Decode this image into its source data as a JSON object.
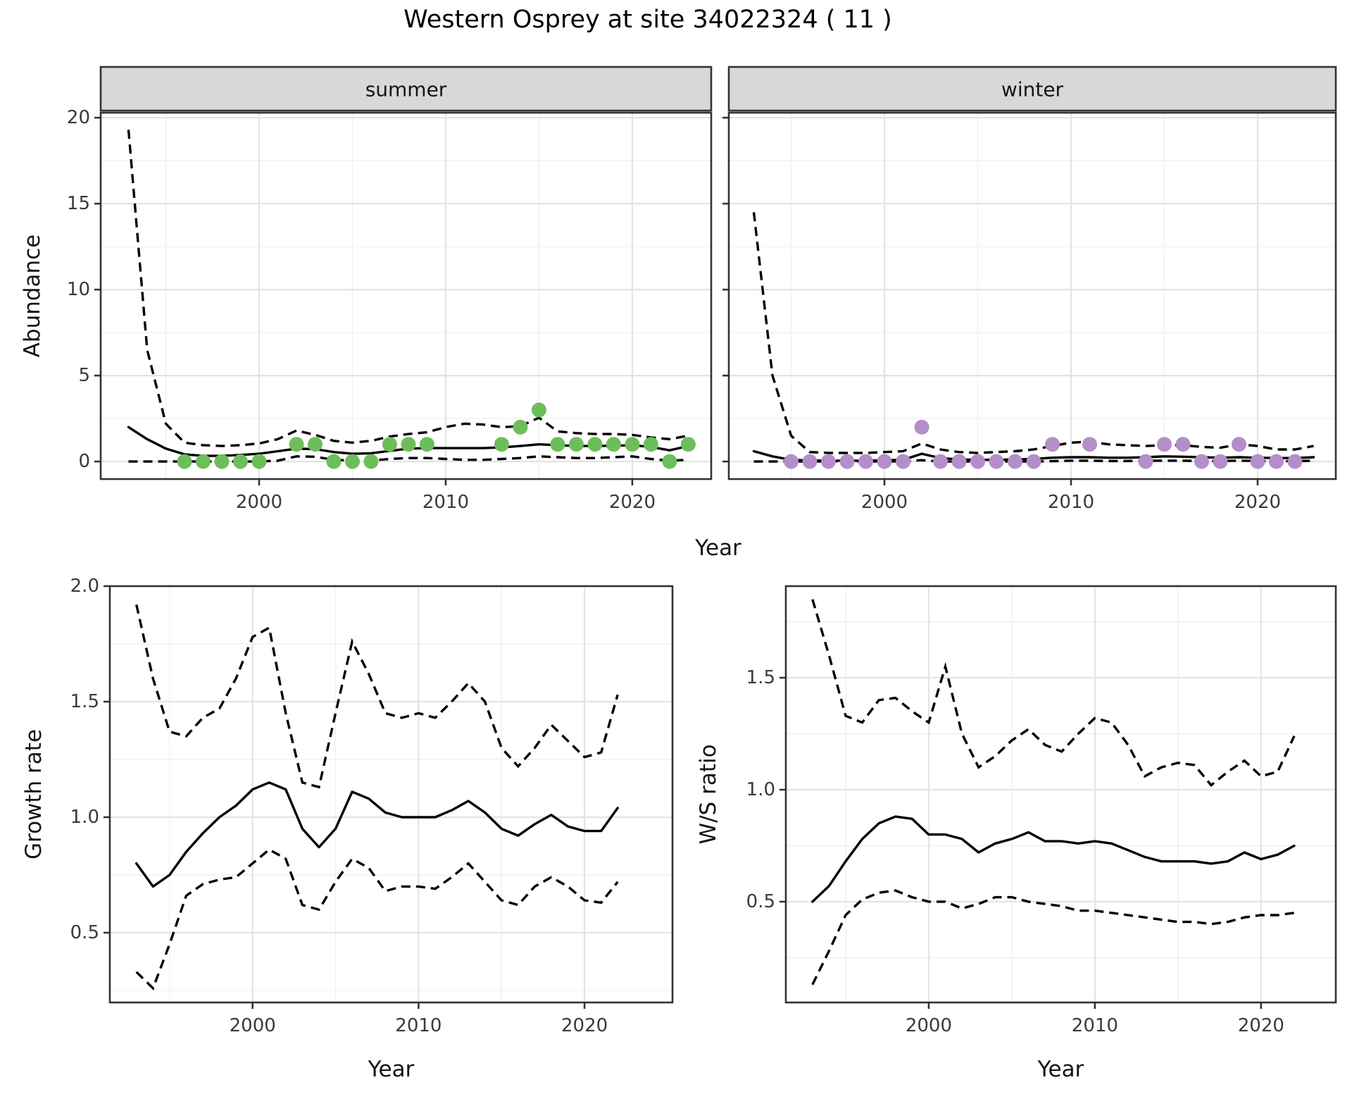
{
  "title": "Western Osprey at site 34022324 ( 11 )",
  "axis_labels": {
    "abundance": "Abundance",
    "year_top": "Year",
    "growth_rate": "Growth rate",
    "year_bottom_left": "Year",
    "ws_ratio": "W/S ratio",
    "year_bottom_right": "Year"
  },
  "facet_strips": [
    "summer",
    "winter"
  ],
  "colors": {
    "summer_point": "#6cbe5b",
    "winter_point": "#b48ec9",
    "line": "#000000",
    "grid_major": "#e3e3e3",
    "grid_minor": "#f0f0f0",
    "panel_border": "#333333",
    "strip_bg": "#d8d8d8",
    "tick_text": "#3a3a3a",
    "axis_title_text": "#151515",
    "panel_bg": "#ffffff"
  },
  "chart_data": [
    {
      "id": "abundance_summer",
      "type": "line",
      "facet_label": "summer",
      "xlabel": "Year",
      "ylabel": "Abundance",
      "xlim": [
        1991.51,
        2024.23
      ],
      "ylim": [
        -1.02,
        20.29
      ],
      "x_ticks": [
        2000,
        2010,
        2020
      ],
      "x_tick_labels": [
        "2000",
        "2010",
        "2020"
      ],
      "x_minor": [
        1995,
        2005,
        2015
      ],
      "y_ticks": [
        0,
        5,
        10,
        15,
        20
      ],
      "y_tick_labels": [
        "0",
        "5",
        "10",
        "15",
        "20"
      ],
      "y_minor": [
        2.5,
        7.5,
        12.5,
        17.5
      ],
      "show_y_tick_labels": true,
      "years": [
        1993,
        1994,
        1995,
        1996,
        1997,
        1998,
        1999,
        2000,
        2001,
        2002,
        2003,
        2004,
        2005,
        2006,
        2007,
        2008,
        2009,
        2010,
        2011,
        2012,
        2013,
        2014,
        2015,
        2016,
        2017,
        2018,
        2019,
        2020,
        2021,
        2022,
        2023
      ],
      "series": [
        {
          "name": "mean",
          "style": "solid",
          "values": [
            2.0,
            1.3,
            0.75,
            0.42,
            0.33,
            0.33,
            0.38,
            0.45,
            0.6,
            0.75,
            0.72,
            0.55,
            0.45,
            0.48,
            0.62,
            0.75,
            0.78,
            0.78,
            0.78,
            0.78,
            0.82,
            0.9,
            1.0,
            0.95,
            0.9,
            0.9,
            0.92,
            0.95,
            0.85,
            0.65,
            0.9
          ]
        },
        {
          "name": "upper_ci",
          "style": "dashed",
          "values": [
            19.3,
            6.5,
            2.2,
            1.1,
            0.95,
            0.9,
            0.95,
            1.05,
            1.3,
            1.8,
            1.55,
            1.2,
            1.1,
            1.2,
            1.45,
            1.6,
            1.7,
            2.0,
            2.2,
            2.15,
            2.0,
            2.05,
            2.55,
            1.75,
            1.65,
            1.6,
            1.6,
            1.55,
            1.4,
            1.3,
            1.5
          ]
        },
        {
          "name": "lower_ci",
          "style": "dashed",
          "values": [
            0,
            0,
            0,
            0,
            0,
            0,
            0,
            0,
            0.05,
            0.3,
            0.28,
            0.1,
            0.05,
            0.05,
            0.15,
            0.2,
            0.2,
            0.15,
            0.1,
            0.1,
            0.15,
            0.2,
            0.3,
            0.25,
            0.2,
            0.2,
            0.25,
            0.3,
            0.15,
            0.05,
            0.1
          ]
        }
      ],
      "observations": [
        [
          1996,
          0
        ],
        [
          1997,
          0
        ],
        [
          1998,
          0
        ],
        [
          1999,
          0
        ],
        [
          2000,
          0
        ],
        [
          2002,
          1
        ],
        [
          2003,
          1
        ],
        [
          2004,
          0
        ],
        [
          2005,
          0
        ],
        [
          2006,
          0
        ],
        [
          2007,
          1
        ],
        [
          2008,
          1
        ],
        [
          2009,
          1
        ],
        [
          2013,
          1
        ],
        [
          2014,
          2
        ],
        [
          2015,
          3
        ],
        [
          2016,
          1
        ],
        [
          2017,
          1
        ],
        [
          2018,
          1
        ],
        [
          2019,
          1
        ],
        [
          2020,
          1
        ],
        [
          2021,
          1
        ],
        [
          2022,
          0
        ],
        [
          2023,
          1
        ]
      ],
      "point_color_key": "summer_point"
    },
    {
      "id": "abundance_winter",
      "type": "line",
      "facet_label": "winter",
      "xlabel": "Year",
      "ylabel": "Abundance",
      "xlim": [
        1991.66,
        2024.19
      ],
      "ylim": [
        -1.02,
        20.29
      ],
      "x_ticks": [
        2000,
        2010,
        2020
      ],
      "x_tick_labels": [
        "2000",
        "2010",
        "2020"
      ],
      "x_minor": [
        1995,
        2005,
        2015
      ],
      "y_ticks": [
        0,
        5,
        10,
        15,
        20
      ],
      "y_tick_labels": [
        "0",
        "5",
        "10",
        "15",
        "20"
      ],
      "y_minor": [
        2.5,
        7.5,
        12.5,
        17.5
      ],
      "show_y_tick_labels": false,
      "years": [
        1993,
        1994,
        1995,
        1996,
        1997,
        1998,
        1999,
        2000,
        2001,
        2002,
        2003,
        2004,
        2005,
        2006,
        2007,
        2008,
        2009,
        2010,
        2011,
        2012,
        2013,
        2014,
        2015,
        2016,
        2017,
        2018,
        2019,
        2020,
        2021,
        2022,
        2023
      ],
      "series": [
        {
          "name": "mean",
          "style": "solid",
          "values": [
            0.6,
            0.3,
            0.1,
            0.06,
            0.05,
            0.05,
            0.05,
            0.07,
            0.1,
            0.45,
            0.2,
            0.12,
            0.1,
            0.1,
            0.12,
            0.15,
            0.22,
            0.25,
            0.25,
            0.22,
            0.22,
            0.25,
            0.3,
            0.28,
            0.25,
            0.22,
            0.25,
            0.22,
            0.2,
            0.2,
            0.25
          ]
        },
        {
          "name": "upper_ci",
          "style": "dashed",
          "values": [
            14.5,
            5.0,
            1.5,
            0.55,
            0.5,
            0.5,
            0.5,
            0.55,
            0.6,
            1.05,
            0.7,
            0.55,
            0.5,
            0.55,
            0.6,
            0.7,
            0.9,
            1.1,
            1.15,
            1.0,
            0.95,
            0.9,
            0.95,
            0.95,
            0.85,
            0.8,
            1.0,
            0.9,
            0.7,
            0.7,
            0.9
          ]
        },
        {
          "name": "lower_ci",
          "style": "dashed",
          "values": [
            0,
            0,
            0,
            0,
            0,
            0,
            0,
            0,
            0,
            0.08,
            0,
            0,
            0,
            0,
            0,
            0,
            0.02,
            0.05,
            0.05,
            0.03,
            0.03,
            0.05,
            0.05,
            0.05,
            0.03,
            0.03,
            0.05,
            0.03,
            0.02,
            0.02,
            0.05
          ]
        }
      ],
      "observations": [
        [
          1995,
          0
        ],
        [
          1996,
          0
        ],
        [
          1997,
          0
        ],
        [
          1998,
          0
        ],
        [
          1999,
          0
        ],
        [
          2000,
          0
        ],
        [
          2001,
          0
        ],
        [
          2002,
          2
        ],
        [
          2003,
          0
        ],
        [
          2004,
          0
        ],
        [
          2005,
          0
        ],
        [
          2006,
          0
        ],
        [
          2007,
          0
        ],
        [
          2008,
          0
        ],
        [
          2009,
          1
        ],
        [
          2011,
          1
        ],
        [
          2014,
          0
        ],
        [
          2015,
          1
        ],
        [
          2016,
          1
        ],
        [
          2017,
          0
        ],
        [
          2018,
          0
        ],
        [
          2019,
          1
        ],
        [
          2020,
          0
        ],
        [
          2021,
          0
        ],
        [
          2022,
          0
        ]
      ],
      "point_color_key": "winter_point"
    },
    {
      "id": "growth_rate",
      "type": "line",
      "facet_label": null,
      "xlabel": "Year",
      "ylabel": "Growth rate",
      "xlim": [
        1991.4,
        2025.3
      ],
      "ylim": [
        0.198,
        2.0
      ],
      "x_ticks": [
        2000,
        2010,
        2020
      ],
      "x_tick_labels": [
        "2000",
        "2010",
        "2020"
      ],
      "x_minor": [
        1995,
        2005,
        2015
      ],
      "y_ticks": [
        0.5,
        1.0,
        1.5,
        2.0
      ],
      "y_tick_labels": [
        "0.5",
        "1.0",
        "1.5",
        "2.0"
      ],
      "y_minor": [
        0.25,
        0.75,
        1.25,
        1.75
      ],
      "show_y_tick_labels": true,
      "years": [
        1993,
        1994,
        1995,
        1996,
        1997,
        1998,
        1999,
        2000,
        2001,
        2002,
        2003,
        2004,
        2005,
        2006,
        2007,
        2008,
        2009,
        2010,
        2011,
        2012,
        2013,
        2014,
        2015,
        2016,
        2017,
        2018,
        2019,
        2020,
        2021,
        2022
      ],
      "series": [
        {
          "name": "mean",
          "style": "solid",
          "values": [
            0.8,
            0.7,
            0.75,
            0.85,
            0.93,
            1.0,
            1.05,
            1.12,
            1.15,
            1.12,
            0.95,
            0.87,
            0.95,
            1.11,
            1.08,
            1.02,
            1.0,
            1.0,
            1.0,
            1.03,
            1.07,
            1.02,
            0.95,
            0.92,
            0.97,
            1.01,
            0.96,
            0.94,
            0.94,
            1.04
          ]
        },
        {
          "name": "upper_ci",
          "style": "dashed",
          "values": [
            1.92,
            1.6,
            1.37,
            1.35,
            1.43,
            1.47,
            1.6,
            1.78,
            1.82,
            1.45,
            1.15,
            1.13,
            1.45,
            1.76,
            1.62,
            1.45,
            1.43,
            1.45,
            1.43,
            1.5,
            1.58,
            1.5,
            1.3,
            1.22,
            1.3,
            1.4,
            1.33,
            1.26,
            1.28,
            1.53
          ]
        },
        {
          "name": "lower_ci",
          "style": "dashed",
          "values": [
            0.33,
            0.26,
            0.45,
            0.66,
            0.71,
            0.73,
            0.74,
            0.8,
            0.86,
            0.82,
            0.62,
            0.6,
            0.72,
            0.82,
            0.78,
            0.68,
            0.7,
            0.7,
            0.69,
            0.74,
            0.8,
            0.72,
            0.64,
            0.62,
            0.7,
            0.74,
            0.7,
            0.64,
            0.63,
            0.72
          ]
        }
      ],
      "observations": [],
      "point_color_key": null
    },
    {
      "id": "ws_ratio",
      "type": "line",
      "facet_label": null,
      "xlabel": "Year",
      "ylabel": "W/S ratio",
      "xlim": [
        1991.4,
        2024.5
      ],
      "ylim": [
        0.05,
        1.909
      ],
      "x_ticks": [
        2000,
        2010,
        2020
      ],
      "x_tick_labels": [
        "2000",
        "2010",
        "2020"
      ],
      "x_minor": [
        1995,
        2005,
        2015
      ],
      "y_ticks": [
        0.5,
        1.0,
        1.5
      ],
      "y_tick_labels": [
        "0.5",
        "1.0",
        "1.5"
      ],
      "y_minor": [
        0.25,
        0.75,
        1.25,
        1.75
      ],
      "show_y_tick_labels": true,
      "years": [
        1993,
        1994,
        1995,
        1996,
        1997,
        1998,
        1999,
        2000,
        2001,
        2002,
        2003,
        2004,
        2005,
        2006,
        2007,
        2008,
        2009,
        2010,
        2011,
        2012,
        2013,
        2014,
        2015,
        2016,
        2017,
        2018,
        2019,
        2020,
        2021,
        2022
      ],
      "series": [
        {
          "name": "mean",
          "style": "solid",
          "values": [
            0.5,
            0.57,
            0.68,
            0.78,
            0.85,
            0.88,
            0.87,
            0.8,
            0.8,
            0.78,
            0.72,
            0.76,
            0.78,
            0.81,
            0.77,
            0.77,
            0.76,
            0.77,
            0.76,
            0.73,
            0.7,
            0.68,
            0.68,
            0.68,
            0.67,
            0.68,
            0.72,
            0.69,
            0.71,
            0.75
          ]
        },
        {
          "name": "upper_ci",
          "style": "dashed",
          "values": [
            1.85,
            1.6,
            1.33,
            1.3,
            1.4,
            1.41,
            1.35,
            1.3,
            1.55,
            1.25,
            1.1,
            1.15,
            1.22,
            1.27,
            1.2,
            1.17,
            1.25,
            1.32,
            1.3,
            1.2,
            1.06,
            1.1,
            1.12,
            1.11,
            1.02,
            1.08,
            1.13,
            1.06,
            1.08,
            1.24
          ]
        },
        {
          "name": "lower_ci",
          "style": "dashed",
          "values": [
            0.13,
            0.28,
            0.44,
            0.51,
            0.54,
            0.55,
            0.52,
            0.5,
            0.5,
            0.47,
            0.49,
            0.52,
            0.52,
            0.5,
            0.49,
            0.48,
            0.46,
            0.46,
            0.45,
            0.44,
            0.43,
            0.42,
            0.41,
            0.41,
            0.4,
            0.41,
            0.43,
            0.44,
            0.44,
            0.45
          ]
        }
      ],
      "observations": [],
      "point_color_key": null
    }
  ]
}
